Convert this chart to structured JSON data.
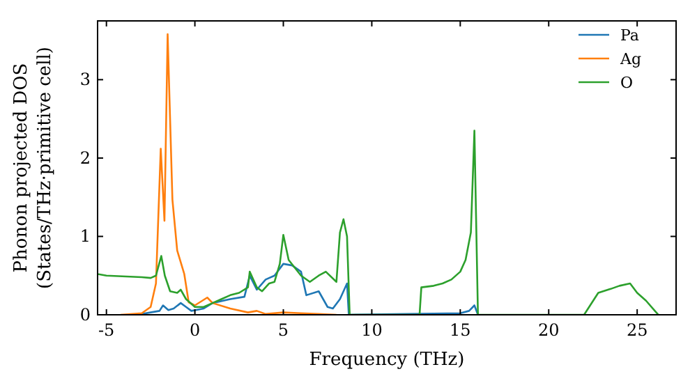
{
  "chart_data": {
    "type": "line",
    "xlabel": "Frequency (THz)",
    "ylabel": "Phonon projected DOS\n(States/THz·primitive cell)",
    "xlim": [
      -5.5,
      27.2
    ],
    "xticks": [
      -5,
      0,
      5,
      10,
      15,
      20,
      25
    ],
    "ylim": [
      0,
      3.75
    ],
    "yticks": [
      0,
      1,
      2,
      3
    ],
    "legend": "top right",
    "grid": false,
    "marker": "none",
    "line_style": "solid",
    "series": [
      {
        "name": "Pa",
        "color": "#1f77b4",
        "x": [
          -3.5,
          -3,
          -2,
          -1.8,
          -1.5,
          -1.2,
          -0.8,
          -0.5,
          -0.2,
          0.5,
          1,
          2,
          2.8,
          3.1,
          3.5,
          4,
          4.5,
          5,
          5.5,
          6,
          6.3,
          7,
          7.5,
          7.8,
          8.2,
          8.6,
          8.7,
          15,
          15.5,
          15.8,
          16
        ],
        "values": [
          0,
          0.01,
          0.05,
          0.12,
          0.06,
          0.08,
          0.15,
          0.1,
          0.05,
          0.08,
          0.15,
          0.2,
          0.23,
          0.5,
          0.32,
          0.45,
          0.5,
          0.65,
          0.63,
          0.55,
          0.25,
          0.3,
          0.1,
          0.08,
          0.2,
          0.4,
          0,
          0.02,
          0.05,
          0.12,
          0
        ]
      },
      {
        "name": "Ag",
        "color": "#ff7f0e",
        "x": [
          -4.2,
          -3,
          -2.5,
          -2.2,
          -1.93,
          -1.72,
          -1.54,
          -1.27,
          -1,
          -0.6,
          -0.35,
          0,
          0.7,
          1,
          2,
          3,
          3.5,
          4,
          5,
          6,
          7,
          8
        ],
        "values": [
          0,
          0.02,
          0.1,
          0.4,
          2.12,
          1.2,
          3.58,
          1.47,
          0.82,
          0.52,
          0.16,
          0.12,
          0.22,
          0.15,
          0.08,
          0.03,
          0.05,
          0.01,
          0.03,
          0.02,
          0.01,
          0
        ]
      },
      {
        "name": "O",
        "color": "#2ca02c",
        "x": [
          -5.5,
          -5,
          -3,
          -2.5,
          -2.2,
          -1.9,
          -1.7,
          -1.4,
          -1,
          -0.8,
          -0.5,
          0,
          0.5,
          1,
          1.5,
          2,
          2.5,
          3,
          3.1,
          3.5,
          3.8,
          4.2,
          4.5,
          4.8,
          5,
          5.3,
          6,
          6.5,
          7,
          7.4,
          8,
          8.2,
          8.4,
          8.6,
          8.75,
          12.7,
          12.8,
          13.5,
          14,
          14.5,
          15,
          15.3,
          15.6,
          15.8,
          16,
          22,
          22.8,
          23.5,
          24,
          24.6,
          25,
          25.5,
          26,
          26.2
        ],
        "values": [
          0.52,
          0.5,
          0.48,
          0.47,
          0.5,
          0.75,
          0.5,
          0.3,
          0.28,
          0.32,
          0.2,
          0.1,
          0.1,
          0.15,
          0.2,
          0.25,
          0.28,
          0.35,
          0.55,
          0.35,
          0.3,
          0.4,
          0.42,
          0.65,
          1.02,
          0.7,
          0.5,
          0.42,
          0.5,
          0.55,
          0.42,
          1.05,
          1.22,
          1,
          0,
          0,
          0.35,
          0.37,
          0.4,
          0.45,
          0.55,
          0.7,
          1.05,
          2.35,
          0,
          0,
          0.28,
          0.33,
          0.37,
          0.4,
          0.28,
          0.18,
          0.05,
          0
        ]
      }
    ]
  }
}
